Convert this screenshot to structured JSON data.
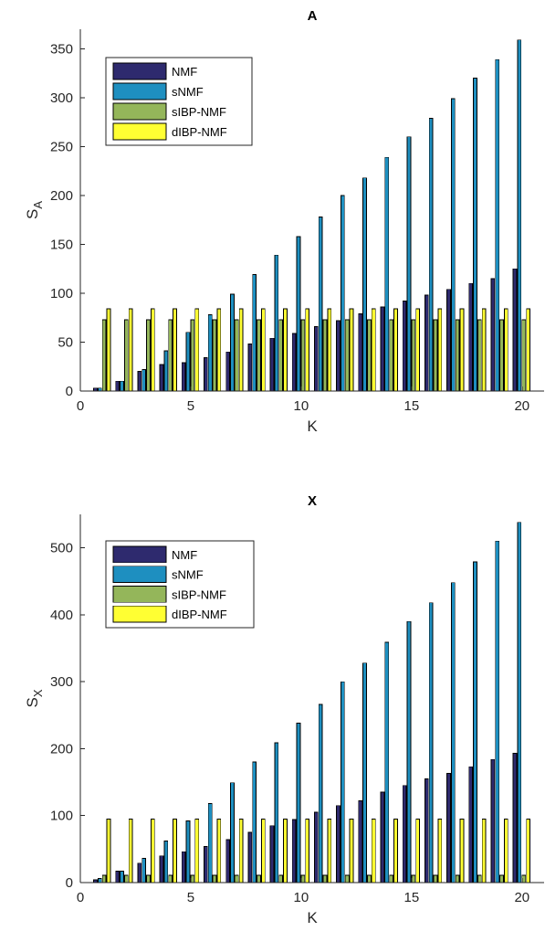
{
  "chart_data": [
    {
      "type": "bar",
      "title": "A",
      "xlabel": "K",
      "ylabel_base": "S",
      "ylabel_sub": "A",
      "x": [
        1,
        2,
        3,
        4,
        5,
        6,
        7,
        8,
        9,
        10,
        11,
        12,
        13,
        14,
        15,
        16,
        17,
        18,
        19,
        20
      ],
      "xlim": [
        0,
        21
      ],
      "ylim": [
        0,
        370
      ],
      "xticks": [
        0,
        5,
        10,
        15,
        20
      ],
      "yticks": [
        0,
        50,
        100,
        150,
        200,
        250,
        300,
        350
      ],
      "legend_position": "top-left",
      "series": [
        {
          "name": "NMF",
          "color": "#2e2a6e",
          "values": [
            3,
            10,
            20,
            27,
            29,
            34,
            40,
            48,
            54,
            59,
            66,
            72,
            79,
            86,
            92,
            98,
            104,
            110,
            115,
            125
          ]
        },
        {
          "name": "sNMF",
          "color": "#1e8fc0",
          "values": [
            3,
            10,
            22,
            41,
            60,
            78,
            99,
            119,
            139,
            158,
            178,
            200,
            218,
            239,
            260,
            279,
            299,
            320,
            339,
            359
          ]
        },
        {
          "name": "sIBP-NMF",
          "color": "#94b65a",
          "values": [
            73,
            73,
            73,
            73,
            73,
            73,
            73,
            73,
            73,
            73,
            73,
            73,
            73,
            73,
            73,
            73,
            73,
            73,
            73,
            73
          ]
        },
        {
          "name": "dIBP-NMF",
          "color": "#ffff33",
          "values": [
            84,
            84,
            84,
            84,
            84,
            84,
            84,
            84,
            84,
            84,
            84,
            84,
            84,
            84,
            84,
            84,
            84,
            84,
            84,
            84
          ]
        }
      ]
    },
    {
      "type": "bar",
      "title": "X",
      "xlabel": "K",
      "ylabel_base": "S",
      "ylabel_sub": "X",
      "x": [
        1,
        2,
        3,
        4,
        5,
        6,
        7,
        8,
        9,
        10,
        11,
        12,
        13,
        14,
        15,
        16,
        17,
        18,
        19,
        20
      ],
      "xlim": [
        0,
        21
      ],
      "ylim": [
        0,
        550
      ],
      "xticks": [
        0,
        5,
        10,
        15,
        20
      ],
      "yticks": [
        0,
        100,
        200,
        300,
        400,
        500
      ],
      "legend_position": "top-left",
      "series": [
        {
          "name": "NMF",
          "color": "#2e2a6e",
          "values": [
            4,
            17,
            29,
            40,
            46,
            54,
            64,
            75,
            85,
            94,
            105,
            115,
            122,
            135,
            145,
            155,
            163,
            173,
            184,
            193
          ]
        },
        {
          "name": "sNMF",
          "color": "#1e8fc0",
          "values": [
            6,
            17,
            36,
            62,
            92,
            118,
            149,
            180,
            209,
            238,
            266,
            300,
            328,
            359,
            390,
            418,
            448,
            479,
            510,
            538
          ]
        },
        {
          "name": "sIBP-NMF",
          "color": "#94b65a",
          "values": [
            11,
            11,
            11,
            11,
            11,
            11,
            11,
            11,
            11,
            11,
            11,
            11,
            11,
            11,
            11,
            11,
            11,
            11,
            11,
            11
          ]
        },
        {
          "name": "dIBP-NMF",
          "color": "#ffff33",
          "values": [
            95,
            95,
            95,
            95,
            95,
            95,
            95,
            95,
            95,
            95,
            95,
            95,
            95,
            95,
            95,
            95,
            95,
            95,
            95,
            95
          ]
        }
      ]
    }
  ]
}
